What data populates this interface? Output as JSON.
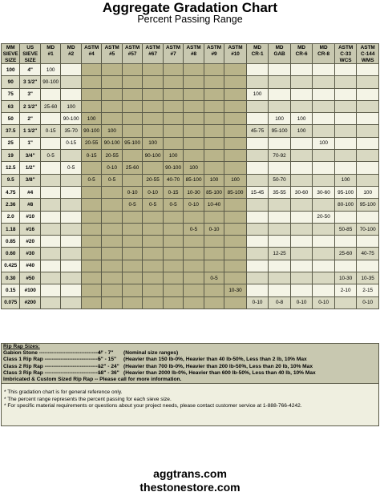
{
  "title": "Aggregate Gradation Chart",
  "subtitle": "Percent Passing Range",
  "header": {
    "row1": [
      "MM",
      "US",
      "MD",
      "MD",
      "ASTM",
      "ASTM",
      "ASTM",
      "ASTM",
      "ASTM",
      "ASTM",
      "ASTM",
      "ASTM",
      "MD",
      "MD",
      "MD",
      "MD",
      "ASTM",
      "ASTM"
    ],
    "row2": [
      "SIEVE",
      "SIEVE",
      "#1",
      "#2",
      "#4",
      "#5",
      "#57",
      "#67",
      "#7",
      "#8",
      "#9",
      "#10",
      "CR-1",
      "GAB",
      "CR-6",
      "CR-8",
      "C-33",
      "C-144"
    ],
    "row3": [
      "SIZE",
      "SIZE",
      "",
      "",
      "",
      "",
      "",
      "",
      "",
      "",
      "",
      "",
      "",
      "",
      "",
      "",
      "WCS",
      "WMS"
    ]
  },
  "rows": [
    {
      "mm": "100",
      "us": "4\"",
      "v": [
        "100",
        "",
        "",
        "",
        "",
        "",
        "",
        "",
        "",
        "",
        "",
        "",
        "",
        "",
        "",
        ""
      ]
    },
    {
      "mm": "90",
      "us": "3 1/2\"",
      "v": [
        "90-100",
        "",
        "",
        "",
        "",
        "",
        "",
        "",
        "",
        "",
        "",
        "",
        "",
        "",
        "",
        ""
      ]
    },
    {
      "mm": "75",
      "us": "3\"",
      "v": [
        "",
        "",
        "",
        "",
        "",
        "",
        "",
        "",
        "",
        "",
        "100",
        "",
        "",
        "",
        "",
        ""
      ]
    },
    {
      "mm": "63",
      "us": "2 1/2\"",
      "v": [
        "25-60",
        "100",
        "",
        "",
        "",
        "",
        "",
        "",
        "",
        "",
        "",
        "",
        "",
        "",
        "",
        ""
      ]
    },
    {
      "mm": "50",
      "us": "2\"",
      "v": [
        "",
        "90-100",
        "100",
        "",
        "",
        "",
        "",
        "",
        "",
        "",
        "",
        "100",
        "100",
        "",
        "",
        ""
      ]
    },
    {
      "mm": "37.5",
      "us": "1 1/2\"",
      "v": [
        "0-15",
        "35-70",
        "90-100",
        "100",
        "",
        "",
        "",
        "",
        "",
        "",
        "45-75",
        "95-100",
        "100",
        "",
        "",
        ""
      ]
    },
    {
      "mm": "25",
      "us": "1\"",
      "v": [
        "",
        "0-15",
        "20-55",
        "90-100",
        "95-100",
        "100",
        "",
        "",
        "",
        "",
        "",
        "",
        "",
        "100",
        "",
        ""
      ]
    },
    {
      "mm": "19",
      "us": "3/4\"",
      "v": [
        "0-5",
        "",
        "0-15",
        "20-55",
        "",
        "90-100",
        "100",
        "",
        "",
        "",
        "",
        "70-92",
        "",
        "",
        "",
        ""
      ]
    },
    {
      "mm": "12.5",
      "us": "1/2\"",
      "v": [
        "",
        "0-5",
        "",
        "0-10",
        "25-60",
        "",
        "90-100",
        "100",
        "",
        "",
        "",
        "",
        "",
        "",
        "",
        ""
      ]
    },
    {
      "mm": "9.5",
      "us": "3/8\"",
      "v": [
        "",
        "",
        "0-5",
        "0-5",
        "",
        "20-55",
        "40-70",
        "85-100",
        "100",
        "100",
        "",
        "50-70",
        "",
        "",
        "100",
        ""
      ]
    },
    {
      "mm": "4.75",
      "us": "#4",
      "v": [
        "",
        "",
        "",
        "",
        "0-10",
        "0-10",
        "0-15",
        "10-30",
        "85-100",
        "85-100",
        "15-45",
        "35-55",
        "30-60",
        "30-60",
        "95-100",
        "100"
      ]
    },
    {
      "mm": "2.36",
      "us": "#8",
      "v": [
        "",
        "",
        "",
        "",
        "0-5",
        "0-5",
        "0-5",
        "0-10",
        "10-40",
        "",
        "",
        "",
        "",
        "",
        "80-100",
        "95-100"
      ]
    },
    {
      "mm": "2.0",
      "us": "#10",
      "v": [
        "",
        "",
        "",
        "",
        "",
        "",
        "",
        "",
        "",
        "",
        "",
        "",
        "",
        "20-50",
        "",
        ""
      ]
    },
    {
      "mm": "1.18",
      "us": "#16",
      "v": [
        "",
        "",
        "",
        "",
        "",
        "",
        "",
        "0-5",
        "0-10",
        "",
        "",
        "",
        "",
        "",
        "50-85",
        "70-100"
      ]
    },
    {
      "mm": "0.85",
      "us": "#20",
      "v": [
        "",
        "",
        "",
        "",
        "",
        "",
        "",
        "",
        "",
        "",
        "",
        "",
        "",
        "",
        "",
        ""
      ]
    },
    {
      "mm": "0.60",
      "us": "#30",
      "v": [
        "",
        "",
        "",
        "",
        "",
        "",
        "",
        "",
        "",
        "",
        "",
        "12-25",
        "",
        "",
        "25-60",
        "40-75"
      ]
    },
    {
      "mm": "0.425",
      "us": "#40",
      "v": [
        "",
        "",
        "",
        "",
        "",
        "",
        "",
        "",
        "",
        "",
        "",
        "",
        "",
        "",
        "",
        ""
      ]
    },
    {
      "mm": "0.30",
      "us": "#50",
      "v": [
        "",
        "",
        "",
        "",
        "",
        "",
        "",
        "",
        "0-5",
        "",
        "",
        "",
        "",
        "",
        "10-30",
        "10-35"
      ]
    },
    {
      "mm": "0.15",
      "us": "#100",
      "v": [
        "",
        "",
        "",
        "",
        "",
        "",
        "",
        "",
        "",
        "10-30",
        "",
        "",
        "",
        "",
        "2-10",
        "2-15"
      ]
    },
    {
      "mm": "0.075",
      "us": "#200",
      "v": [
        "",
        "",
        "",
        "",
        "",
        "",
        "",
        "",
        "",
        "",
        "0-10",
        "0-8",
        "0-10",
        "0-10",
        "",
        "0-10"
      ]
    }
  ],
  "riprap": {
    "heading": "Rip Rap Sizes:",
    "items": [
      {
        "name": "Gabion Stone ------------------------------------",
        "size": "4\" - 7\"",
        "desc": "(Nominal size ranges)"
      },
      {
        "name": "Class 1 Rip Rap --------------------------------",
        "size": "5\" - 15\"",
        "desc": "(Heavier than 150 lb-0%, Heavier than 40 lb-50%, Less than 2 lb, 10% Max"
      },
      {
        "name": "Class 2 Rip Rap --------------------------------",
        "size": "12\" - 24\"",
        "desc": "(Heavier than 700 lb-0%, Heavier than 200 lb-50%, Less than 20 lb, 10% Max"
      },
      {
        "name": "Class 3 Rip Rap --------------------------------",
        "size": "18\" - 36\"",
        "desc": "(Heavier than 2000 lb-0%, Heavier than 600 lb-50%, Less than 40 lb, 10% Max"
      }
    ],
    "imbricated": "Imbricated & Custom Sized Rip Rap -- Please call for more information."
  },
  "notes": [
    "* This gradation chart is for general reference only.",
    "* The percent range represents the percent passing for each sieve size.",
    "* For specific material requirements or questions about your project needs, please contact customer service at 1-888-766-4242."
  ],
  "links": [
    "aggtrans.com",
    "thestonestore.com"
  ]
}
